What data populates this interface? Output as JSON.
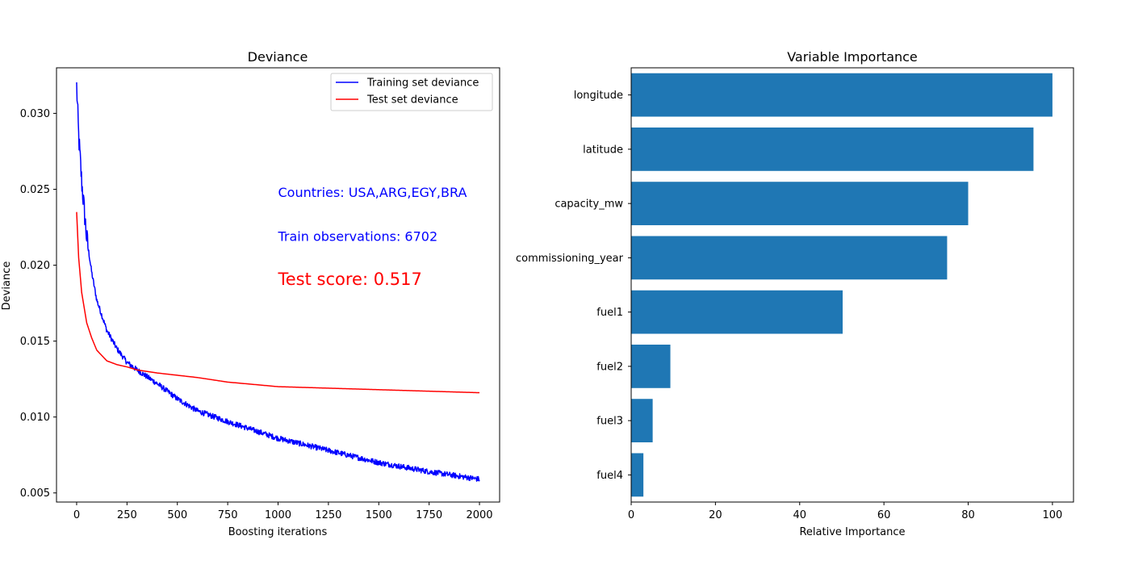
{
  "chart_data": [
    {
      "type": "line",
      "title": "Deviance",
      "xlabel": "Boosting iterations",
      "ylabel": "Deviance",
      "xlim": [
        -100,
        2100
      ],
      "ylim": [
        0.0044,
        0.033
      ],
      "xticks": [
        0,
        250,
        500,
        750,
        1000,
        1250,
        1500,
        1750,
        2000
      ],
      "xtick_labels": [
        "0",
        "250",
        "500",
        "750",
        "1000",
        "1250",
        "1500",
        "1750",
        "2000"
      ],
      "yticks": [
        0.005,
        0.01,
        0.015,
        0.02,
        0.025,
        0.03
      ],
      "ytick_labels": [
        "0.005",
        "0.010",
        "0.015",
        "0.020",
        "0.025",
        "0.030"
      ],
      "grid": false,
      "legend_position": "top-right",
      "series": [
        {
          "name": "Training set deviance",
          "color": "#0000ff",
          "noisy": true,
          "x": [
            0,
            10,
            25,
            50,
            75,
            100,
            150,
            200,
            250,
            300,
            400,
            500,
            600,
            750,
            1000,
            1250,
            1500,
            1750,
            2000
          ],
          "y": [
            0.0318,
            0.0285,
            0.0255,
            0.0218,
            0.0195,
            0.0177,
            0.0157,
            0.0145,
            0.0136,
            0.0131,
            0.0122,
            0.0112,
            0.0104,
            0.0097,
            0.0086,
            0.0078,
            0.007,
            0.0064,
            0.0059
          ]
        },
        {
          "name": "Test set deviance",
          "color": "#ff0000",
          "noisy": false,
          "x": [
            0,
            10,
            25,
            50,
            75,
            100,
            150,
            200,
            250,
            300,
            400,
            500,
            600,
            750,
            1000,
            1250,
            1500,
            1750,
            2000
          ],
          "y": [
            0.0235,
            0.0205,
            0.0182,
            0.0162,
            0.0152,
            0.0144,
            0.0137,
            0.01345,
            0.0133,
            0.0131,
            0.0129,
            0.01275,
            0.0126,
            0.0123,
            0.012,
            0.0119,
            0.0118,
            0.0117,
            0.0116
          ]
        }
      ],
      "annotations": [
        {
          "text": "Countries: USA,ARG,EGY,BRA",
          "x": 1000,
          "y": 0.0245,
          "color": "#0000ff",
          "size": "medium"
        },
        {
          "text": "Train observations: 6702",
          "x": 1000,
          "y": 0.0216,
          "color": "#0000ff",
          "size": "medium"
        },
        {
          "text": "Test score: 0.517",
          "x": 1000,
          "y": 0.0187,
          "color": "#ff0000",
          "size": "large"
        }
      ]
    },
    {
      "type": "bar",
      "orientation": "horizontal",
      "title": "Variable Importance",
      "xlabel": "Relative Importance",
      "ylabel": "",
      "xlim": [
        0,
        105
      ],
      "xticks": [
        0,
        20,
        40,
        60,
        80,
        100
      ],
      "xtick_labels": [
        "0",
        "20",
        "40",
        "60",
        "80",
        "100"
      ],
      "bar_color": "#1f77b4",
      "grid": false,
      "categories": [
        "longitude",
        "latitude",
        "capacity_mw",
        "commissioning_year",
        "fuel1",
        "fuel2",
        "fuel3",
        "fuel4"
      ],
      "values": [
        100,
        95.5,
        80,
        75,
        50.2,
        9.3,
        5.1,
        2.9
      ]
    }
  ]
}
